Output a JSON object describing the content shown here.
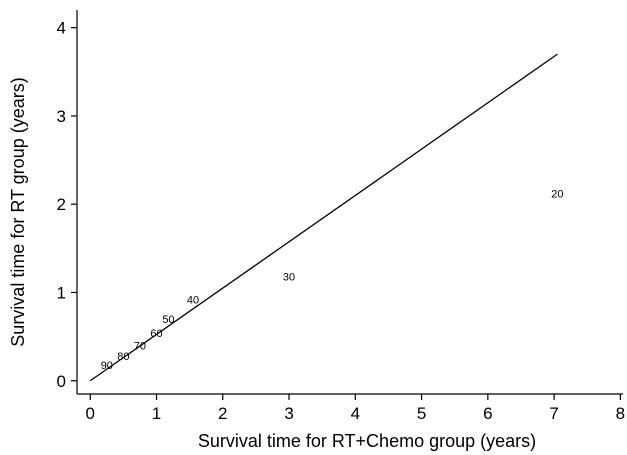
{
  "chart_data": {
    "type": "scatter",
    "title": "",
    "xlabel": "Survival time for RT+Chemo group (years)",
    "ylabel": "Survival time for RT group (years)",
    "xlim": [
      -0.2,
      8.1
    ],
    "ylim": [
      -0.15,
      4.2
    ],
    "xticks": [
      0,
      1,
      2,
      3,
      4,
      5,
      6,
      7,
      8
    ],
    "yticks": [
      0,
      1,
      2,
      3,
      4
    ],
    "grid": false,
    "points": [
      {
        "label": "90",
        "x": 0.25,
        "y": 0.18
      },
      {
        "label": "80",
        "x": 0.5,
        "y": 0.28
      },
      {
        "label": "70",
        "x": 0.75,
        "y": 0.4
      },
      {
        "label": "60",
        "x": 1.0,
        "y": 0.54
      },
      {
        "label": "50",
        "x": 1.18,
        "y": 0.7
      },
      {
        "label": "40",
        "x": 1.55,
        "y": 0.92
      },
      {
        "label": "30",
        "x": 3.0,
        "y": 1.18
      },
      {
        "label": "20",
        "x": 7.05,
        "y": 2.12
      }
    ],
    "reference_line": {
      "x": [
        0,
        7.05
      ],
      "y": [
        0,
        3.7
      ]
    }
  }
}
